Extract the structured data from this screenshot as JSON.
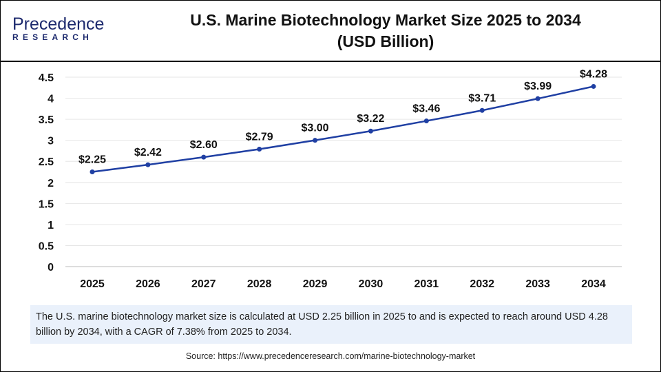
{
  "logo": {
    "line1": "Precedence",
    "line2": "RESEARCH"
  },
  "title": "U.S. Marine Biotechnology Market Size 2025 to 2034",
  "subtitle": "(USD Billion)",
  "chart_data": {
    "type": "line",
    "title": "U.S. Marine Biotechnology Market Size 2025 to 2034 (USD Billion)",
    "categories": [
      "2025",
      "2026",
      "2027",
      "2028",
      "2029",
      "2030",
      "2031",
      "2032",
      "2033",
      "2034"
    ],
    "values": [
      2.25,
      2.42,
      2.6,
      2.79,
      3.0,
      3.22,
      3.46,
      3.71,
      3.99,
      4.28
    ],
    "data_labels": [
      "$2.25",
      "$2.42",
      "$2.60",
      "$2.79",
      "$3.00",
      "$3.22",
      "$3.46",
      "$3.71",
      "$3.99",
      "$4.28"
    ],
    "yticks": [
      "0",
      "0.5",
      "1",
      "1.5",
      "2",
      "2.5",
      "3",
      "3.5",
      "4",
      "4.5"
    ],
    "ylim": [
      0,
      4.5
    ],
    "grid": true,
    "line_color": "#1f3fa3"
  },
  "note": "The U.S. marine biotechnology market size is calculated at USD 2.25 billion in 2025 to and is expected to reach around USD 4.28 billion by 2034, with a CAGR of 7.38% from 2025 to 2034.",
  "source": "Source: https://www.precedenceresearch.com/marine-biotechnology-market"
}
